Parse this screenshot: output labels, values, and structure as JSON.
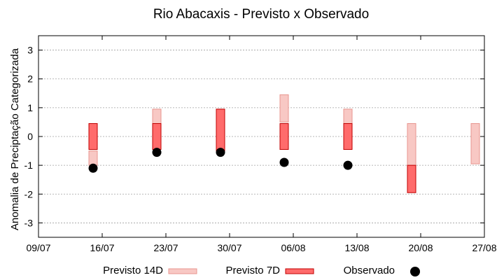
{
  "chart_data": {
    "type": "bar",
    "title": "Rio Abacaxis - Previsto x Observado",
    "ylabel": "Anomalia de Preciptação Categorizada",
    "xlabel": "",
    "x_ticks": [
      "09/07",
      "16/07",
      "23/07",
      "30/07",
      "06/08",
      "13/08",
      "20/08",
      "27/08"
    ],
    "x_range": [
      "09/07",
      "27/08"
    ],
    "y_ticks": [
      "-3",
      "-2",
      "-1",
      "0",
      "1",
      "2",
      "3"
    ],
    "ylim": [
      -3.5,
      3.5
    ],
    "grid": true,
    "legend_position": "bottom",
    "series": [
      {
        "name": "Previsto 14D",
        "type": "range",
        "color": "#f8c8c4",
        "stroke": "#e8968f",
        "points": [
          {
            "date": "15/07",
            "low": -1.0,
            "high": -0.5
          },
          {
            "date": "22/07",
            "low": 0.45,
            "high": 0.95
          },
          {
            "date": "29/07",
            "low": -0.5,
            "high": 0.95
          },
          {
            "date": "05/08",
            "low": 0.5,
            "high": 1.45
          },
          {
            "date": "12/08",
            "low": 0.45,
            "high": 0.95
          },
          {
            "date": "19/08",
            "low": -1.0,
            "high": 0.45
          },
          {
            "date": "26/08",
            "low": -0.95,
            "high": 0.45
          }
        ]
      },
      {
        "name": "Previsto 7D",
        "type": "range",
        "color": "#ff6b6b",
        "stroke": "#c00000",
        "points": [
          {
            "date": "15/07",
            "low": -0.45,
            "high": 0.45
          },
          {
            "date": "22/07",
            "low": -0.45,
            "high": 0.45
          },
          {
            "date": "29/07",
            "low": -0.5,
            "high": 0.95
          },
          {
            "date": "05/08",
            "low": -0.45,
            "high": 0.45
          },
          {
            "date": "12/08",
            "low": -0.45,
            "high": 0.45
          },
          {
            "date": "19/08",
            "low": -1.95,
            "high": -1.0
          }
        ]
      },
      {
        "name": "Observado",
        "type": "scatter",
        "color": "#000000",
        "points": [
          {
            "date": "15/07",
            "value": -1.1
          },
          {
            "date": "22/07",
            "value": -0.55
          },
          {
            "date": "29/07",
            "value": -0.55
          },
          {
            "date": "05/08",
            "value": -0.9
          },
          {
            "date": "12/08",
            "value": -1.0
          }
        ]
      }
    ]
  }
}
